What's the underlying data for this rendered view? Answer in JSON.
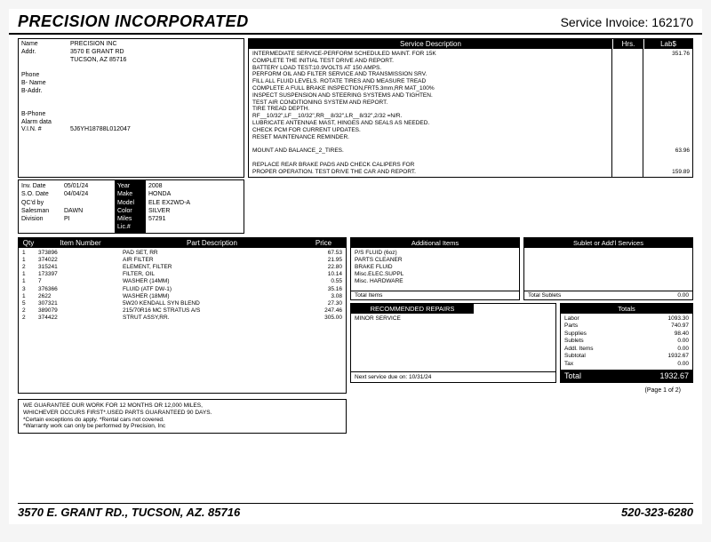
{
  "header": {
    "company": "PRECISION INCORPORATED",
    "invoice_label": "Service Invoice:",
    "invoice_no": "162170"
  },
  "cust_labels": "Name\nAddr.\n\n\nPhone\nB- Name\nB-Addr.\n\n\nB-Phone\nAlarm data\nV.I.N. #",
  "cust_values": "PRECISION INC\n3570 E GRANT RD\nTUCSON, AZ 85716\n\n\n\n\n\n\n\n\n5J6YH18788L012047",
  "svc": {
    "hd1": "Service Description",
    "hd2": "Hrs.",
    "hd3": "Lab$",
    "desc": "INTERMEDIATE SERVICE-PERFORM SCHEDULED MAINT. FOR 15K\nCOMPLETE THE INITIAL TEST DRIVE AND REPORT.\nBATTERY LOAD TEST:10.9VOLTS AT 150 AMPS.\nPERFORM OIL AND FILTER SERVICE AND TRANSMISSION SRV.\nFILL ALL FLUID LEVELS. ROTATE TIRES AND MEASURE TREAD\nCOMPLETE A FULL BRAKE INSPECTION,FRT5.3mm,RR MAT_100%\nINSPECT SUSPENSION AND STEERING SYSTEMS AND TIGHTEN.\nTEST AIR CONDITIONING SYSTEM AND REPORT.\nTIRE TREAD DEPTH.\nRF__10/32\",LF__10/32\",RR__8/32\",LR__8/32\",2/32 =N/R.\nLUBRICATE ANTENNAE MAST, HINGES AND SEALS AS NEEDED.\nCHECK PCM FOR CURRENT UPDATES.\nRESET MAINTENANCE REMINDER.\n\nMOUNT AND BALANCE_2_TIRES.\n\nREPLACE REAR BRAKE PADS AND CHECK CALIPERS FOR\nPROPER OPERATION. TEST DRIVE THE CAR AND REPORT.",
    "lab": "351.76\n\n\n\n\n\n\n\n\n\n\n\n\n\n63.96\n\n\n159.89"
  },
  "meta": {
    "l1": "Inv. Date\nS.O. Date\nQC'd by\nSalesman\nDivision",
    "v1": "05/01/24\n04/04/24\n\nDAWN\nPI",
    "l2": "Year\nMake\nModel\nColor\nMiles\nLic.#",
    "v2": "2008\nHONDA\nELE EX2WD-A\nSILVER\n57291"
  },
  "parts": {
    "h_qty": "Qty",
    "h_num": "Item Number",
    "h_desc": "Part Description",
    "h_price": "Price",
    "rows": [
      [
        "1",
        "373896",
        "PAD SET, RR",
        "67.53"
      ],
      [
        "1",
        "374022",
        "AIR FILTER",
        "21.95"
      ],
      [
        "2",
        "315241",
        "ELEMENT, FILTER",
        "22.80"
      ],
      [
        "1",
        "173397",
        "FILTER, OIL",
        "10.14"
      ],
      [
        "1",
        "7",
        "WASHER (14MM)",
        "0.55"
      ],
      [
        "3",
        "376366",
        "FLUID (ATF DW-1)",
        "35.16"
      ],
      [
        "1",
        "2622",
        "WASHER (18MM)",
        "3.08"
      ],
      [
        "5",
        "307321",
        "5W20 KENDALL SYN BLEND",
        "27.30"
      ],
      [
        "2",
        "389079",
        "215/70R16 MC STRATUS A/S",
        "247.46"
      ],
      [
        "2",
        "374422",
        "STRUT ASSY,RR.",
        "305.00"
      ]
    ]
  },
  "addl": {
    "hd": "Additional Items",
    "body": "P/S FLUID (6oz)\nPARTS CLEANER\nBRAKE FLUID\nMisc.ELEC.SUPPL\nMisc. HARDWARE",
    "ft_l": "Total Items",
    "ft_r": ""
  },
  "subl": {
    "hd": "Sublet or Add'l Services",
    "ft_l": "Total Sublets",
    "ft_r": "0.00"
  },
  "rec": {
    "hd": "RECOMMENDED REPAIRS",
    "body": "MINOR SERVICE",
    "ft": "Next service due on: 10/31/24"
  },
  "totals": {
    "hd": "Totals",
    "rows": [
      [
        "Labor",
        "1093.30"
      ],
      [
        "Parts",
        "740.97"
      ],
      [
        "Supplies",
        "98.40"
      ],
      [
        "Sublets",
        "0.00"
      ],
      [
        "Addl. Items",
        "0.00"
      ],
      [
        "Subtotal",
        "1932.67"
      ],
      [
        "Tax",
        "0.00"
      ]
    ],
    "final_l": "Total",
    "final_r": "1932.67"
  },
  "page": "(Page 1 of 2)",
  "guarantee": "WE GUARANTEE OUR WORK FOR 12 MONTHS OR 12,000 MILES,\nWHICHEVER OCCURS FIRST*.USED PARTS GUARANTEED 90 DAYS.\n*Certain exceptions do apply. *Rental cars not covered.\n*Warranty work can only be performed by Precision, Inc",
  "footer": {
    "addr": "3570 E. GRANT RD., TUCSON, AZ. 85716",
    "phone": "520-323-6280"
  }
}
